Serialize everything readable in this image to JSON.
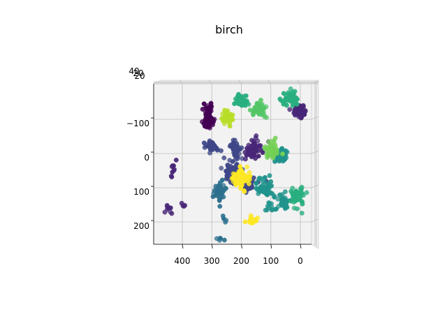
{
  "chart_data": {
    "type": "scatter",
    "projection": "3d",
    "title": "birch",
    "xlabel": "",
    "ylabel": "",
    "zlabel": "",
    "x_ticks": [
      "400",
      "300",
      "200",
      "100",
      "0"
    ],
    "y_ticks": [
      "−100",
      "0",
      "100",
      "200"
    ],
    "z_ticks": [
      "40",
      "20",
      "20"
    ],
    "xlim": [
      500,
      -40
    ],
    "ylim": [
      -200,
      270
    ],
    "grid": true,
    "legend": "none",
    "colormap": [
      "#440154",
      "#482677",
      "#3f4788",
      "#2d708e",
      "#20938c",
      "#29af7f",
      "#55c667",
      "#73d055",
      "#b8de29",
      "#fde725"
    ],
    "clusters": [
      {
        "x": 310,
        "y": -95,
        "sx": 9,
        "sy": 10,
        "n": 60,
        "c": 0
      },
      {
        "x": 310,
        "y": -130,
        "sx": 8,
        "sy": 7,
        "n": 25,
        "c": 0
      },
      {
        "x": 430,
        "y": 40,
        "sx": 6,
        "sy": 15,
        "n": 10,
        "c": 1
      },
      {
        "x": 445,
        "y": 160,
        "sx": 6,
        "sy": 6,
        "n": 8,
        "c": 1
      },
      {
        "x": 400,
        "y": 150,
        "sx": 5,
        "sy": 5,
        "n": 4,
        "c": 1
      },
      {
        "x": 300,
        "y": -20,
        "sx": 9,
        "sy": 10,
        "n": 45,
        "c": 2
      },
      {
        "x": 220,
        "y": -10,
        "sx": 9,
        "sy": 12,
        "n": 40,
        "c": 2
      },
      {
        "x": 155,
        "y": -10,
        "sx": 14,
        "sy": 16,
        "n": 60,
        "c": 1
      },
      {
        "x": 0,
        "y": -125,
        "sx": 11,
        "sy": 10,
        "n": 60,
        "c": 1
      },
      {
        "x": 230,
        "y": 55,
        "sx": 16,
        "sy": 16,
        "n": 60,
        "c": 2
      },
      {
        "x": 175,
        "y": 90,
        "sx": 15,
        "sy": 10,
        "n": 50,
        "c": 2
      },
      {
        "x": 270,
        "y": 110,
        "sx": 10,
        "sy": 14,
        "n": 50,
        "c": 3
      },
      {
        "x": 270,
        "y": 250,
        "sx": 12,
        "sy": 4,
        "n": 5,
        "c": 3
      },
      {
        "x": 255,
        "y": 195,
        "sx": 6,
        "sy": 6,
        "n": 4,
        "c": 3
      },
      {
        "x": 65,
        "y": 5,
        "sx": 12,
        "sy": 10,
        "n": 60,
        "c": 4
      },
      {
        "x": 120,
        "y": 105,
        "sx": 14,
        "sy": 12,
        "n": 50,
        "c": 4
      },
      {
        "x": 55,
        "y": 140,
        "sx": 12,
        "sy": 10,
        "n": 35,
        "c": 4
      },
      {
        "x": 100,
        "y": 150,
        "sx": 10,
        "sy": 18,
        "n": 15,
        "c": 4
      },
      {
        "x": 200,
        "y": -155,
        "sx": 11,
        "sy": 9,
        "n": 50,
        "c": 5
      },
      {
        "x": 35,
        "y": -160,
        "sx": 15,
        "sy": 9,
        "n": 60,
        "c": 5
      },
      {
        "x": 10,
        "y": 125,
        "sx": 10,
        "sy": 14,
        "n": 55,
        "c": 5
      },
      {
        "x": 140,
        "y": -130,
        "sx": 12,
        "sy": 10,
        "n": 55,
        "c": 6
      },
      {
        "x": 100,
        "y": -10,
        "sx": 12,
        "sy": 12,
        "n": 50,
        "c": 7
      },
      {
        "x": 245,
        "y": -105,
        "sx": 11,
        "sy": 9,
        "n": 45,
        "c": 8
      },
      {
        "x": 205,
        "y": 75,
        "sx": 13,
        "sy": 15,
        "n": 70,
        "c": 9
      },
      {
        "x": 165,
        "y": 195,
        "sx": 10,
        "sy": 5,
        "n": 20,
        "c": 9
      }
    ]
  }
}
